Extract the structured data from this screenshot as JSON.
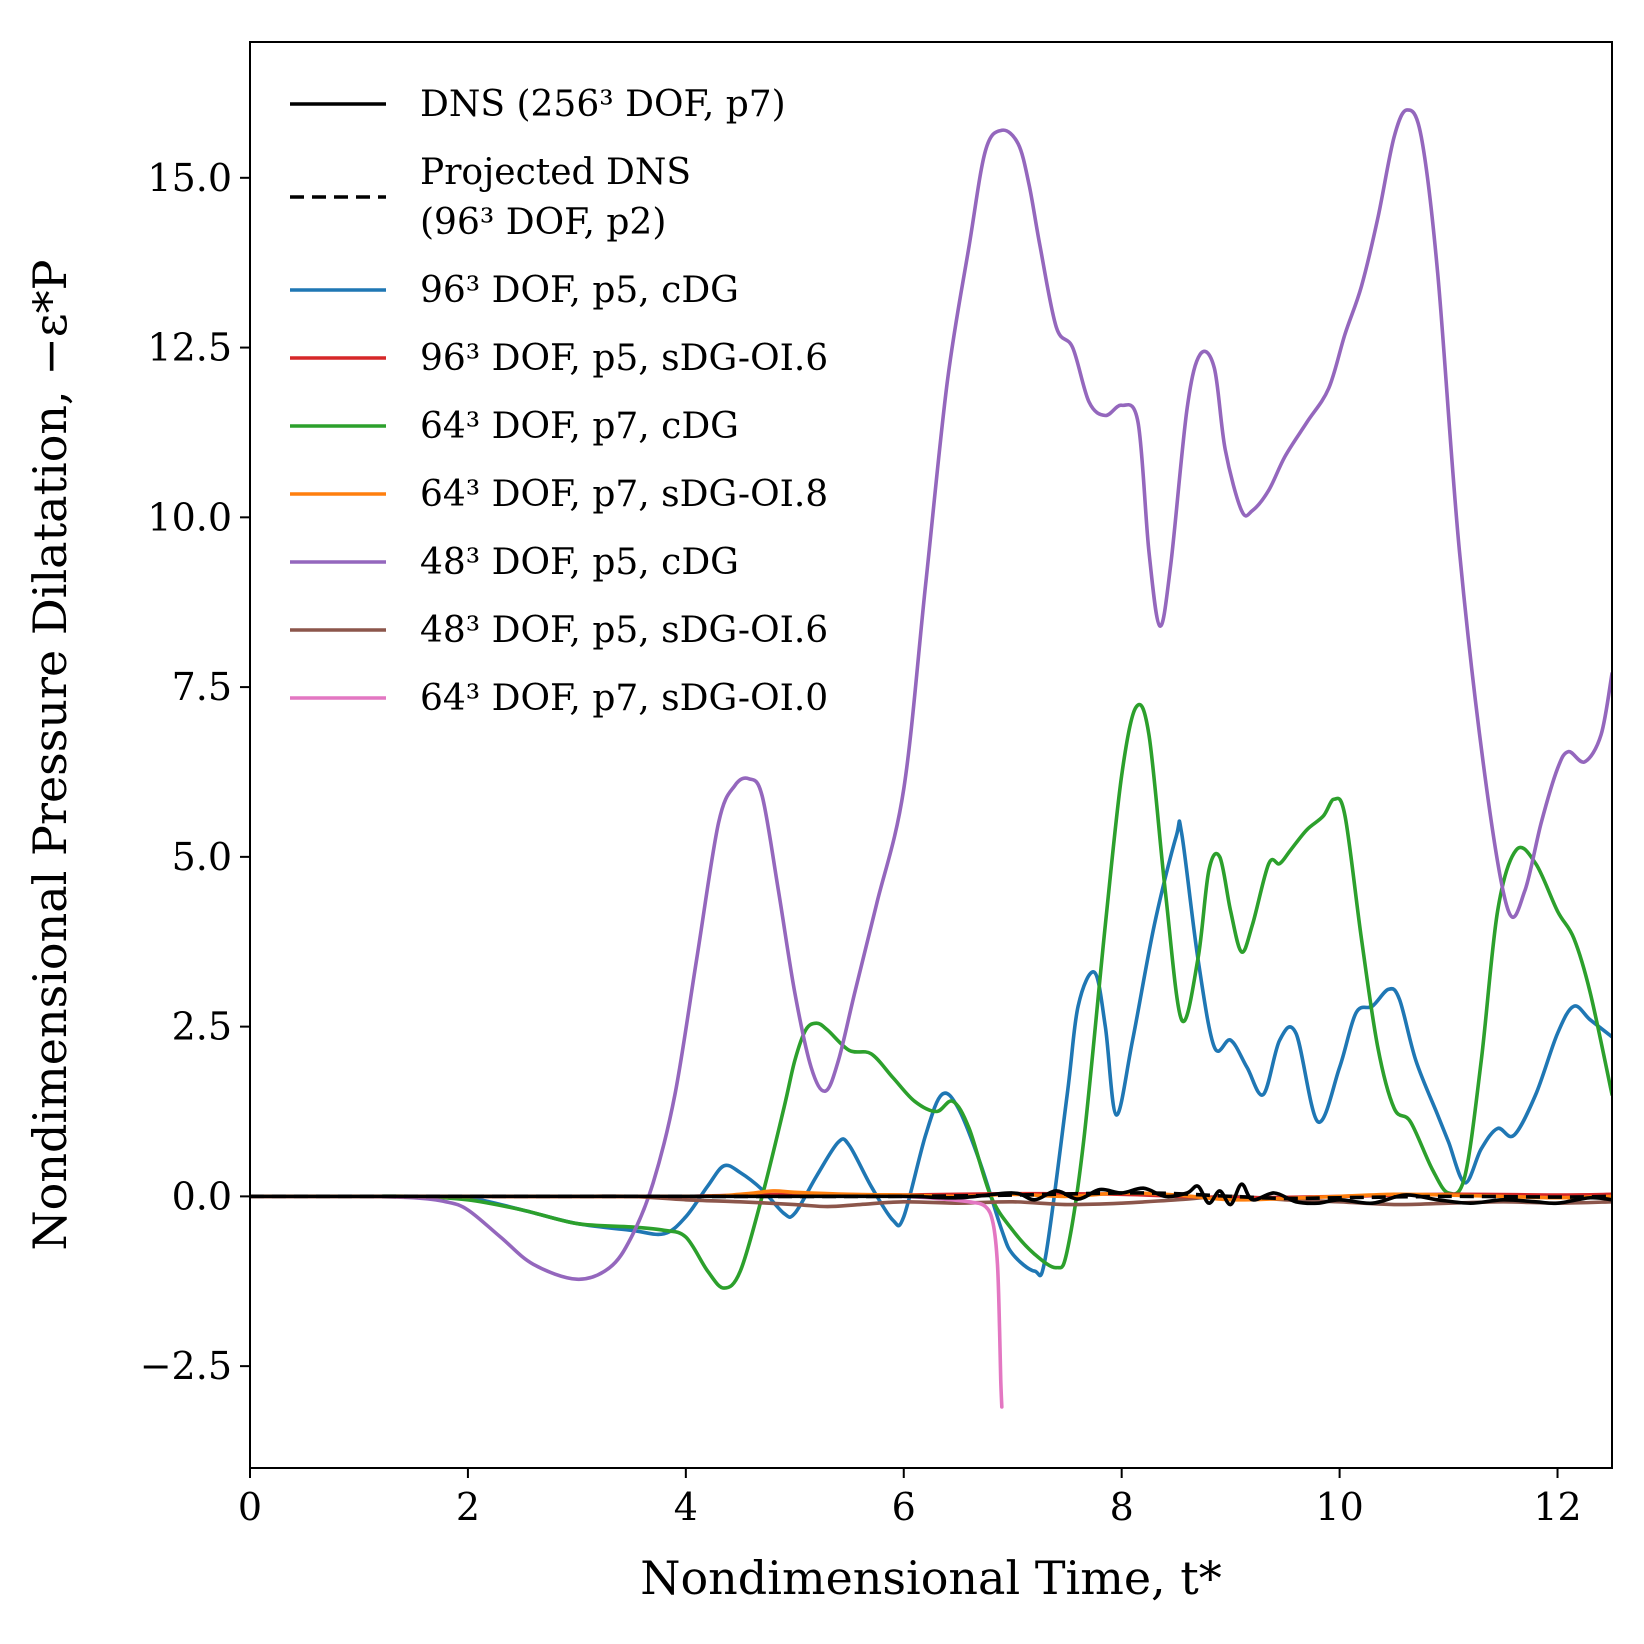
{
  "chart_data": {
    "type": "line",
    "title": "",
    "xlabel": "Nondimensional Time, t*",
    "ylabel": "Nondimensional Pressure Dilatation, −ε*P",
    "xlim": [
      0,
      12.5
    ],
    "ylim": [
      -4.0,
      17.0
    ],
    "xticks": [
      0,
      2,
      4,
      6,
      8,
      10,
      12
    ],
    "xtick_labels": [
      "0",
      "2",
      "4",
      "6",
      "8",
      "10",
      "12"
    ],
    "yticks": [
      -2.5,
      0.0,
      2.5,
      5.0,
      7.5,
      10.0,
      12.5,
      15.0
    ],
    "ytick_labels": [
      "−2.5",
      "0.0",
      "2.5",
      "5.0",
      "7.5",
      "10.0",
      "12.5",
      "15.0"
    ],
    "grid": false,
    "legend_position": "top-left",
    "series": [
      {
        "name": "DNS (256³ DOF, p7)",
        "legend_lines": [
          "DNS (256³ DOF, p7)"
        ],
        "color": "#000000",
        "dash": "solid",
        "x": [
          0,
          1,
          2,
          3,
          4,
          5,
          6,
          6.5,
          7.0,
          7.2,
          7.4,
          7.6,
          7.8,
          8.0,
          8.2,
          8.4,
          8.6,
          8.7,
          8.8,
          8.9,
          9.0,
          9.1,
          9.2,
          9.4,
          9.6,
          9.8,
          10.0,
          10.3,
          10.6,
          10.9,
          11.2,
          11.5,
          11.8,
          12.0,
          12.3,
          12.5
        ],
        "y": [
          0,
          0,
          0,
          0,
          0,
          0,
          0,
          -0.02,
          0.05,
          -0.05,
          0.08,
          -0.04,
          0.1,
          0.05,
          0.12,
          0.0,
          0.05,
          0.15,
          -0.1,
          0.08,
          -0.12,
          0.18,
          -0.05,
          0.05,
          -0.08,
          -0.1,
          -0.05,
          -0.1,
          0.02,
          -0.05,
          -0.1,
          -0.05,
          -0.08,
          -0.1,
          -0.02,
          -0.05
        ]
      },
      {
        "name": "Projected DNS (96³ DOF, p2)",
        "legend_lines": [
          "Projected DNS",
          "(96³ DOF, p2)"
        ],
        "color": "#000000",
        "dash": "dashed",
        "x": [
          0,
          2,
          4,
          6,
          7,
          8,
          8.5,
          9,
          9.5,
          10,
          11,
          12,
          12.5
        ],
        "y": [
          0,
          0,
          0,
          0,
          0.02,
          0.05,
          0.04,
          0.0,
          -0.03,
          -0.02,
          0.0,
          -0.01,
          0.0
        ]
      },
      {
        "name": "96³ DOF, p5, cDG",
        "legend_lines": [
          "96³ DOF, p5, cDG"
        ],
        "color": "#1f77b4",
        "dash": "solid",
        "x": [
          0,
          1,
          1.5,
          2,
          2.5,
          3,
          3.5,
          3.8,
          4.0,
          4.2,
          4.35,
          4.5,
          4.7,
          4.9,
          5.0,
          5.2,
          5.4,
          5.5,
          5.7,
          5.9,
          6.0,
          6.2,
          6.35,
          6.5,
          6.7,
          6.9,
          7.0,
          7.2,
          7.3,
          7.5,
          7.6,
          7.75,
          7.85,
          7.95,
          8.1,
          8.3,
          8.5,
          8.55,
          8.7,
          8.85,
          9.0,
          9.15,
          9.3,
          9.45,
          9.6,
          9.8,
          10.0,
          10.15,
          10.3,
          10.45,
          10.55,
          10.7,
          10.9,
          11.0,
          11.15,
          11.3,
          11.45,
          11.6,
          11.8,
          12.0,
          12.15,
          12.3,
          12.5
        ],
        "y": [
          0,
          0,
          0,
          -0.02,
          -0.2,
          -0.4,
          -0.5,
          -0.55,
          -0.3,
          0.15,
          0.45,
          0.35,
          0.1,
          -0.25,
          -0.25,
          0.3,
          0.8,
          0.75,
          0.15,
          -0.35,
          -0.3,
          0.9,
          1.5,
          1.3,
          0.5,
          -0.5,
          -0.85,
          -1.1,
          -0.9,
          1.5,
          2.8,
          3.3,
          2.5,
          1.2,
          2.3,
          4.0,
          5.3,
          5.35,
          3.5,
          2.2,
          2.3,
          1.9,
          1.5,
          2.3,
          2.4,
          1.1,
          1.9,
          2.7,
          2.8,
          3.05,
          2.9,
          2.0,
          1.2,
          0.8,
          0.2,
          0.7,
          1.0,
          0.9,
          1.5,
          2.4,
          2.8,
          2.6,
          2.35
        ]
      },
      {
        "name": "96³ DOF, p5, sDG-OI.6",
        "legend_lines": [
          "96³ DOF, p5, sDG-OI.6"
        ],
        "color": "#d62728",
        "dash": "solid",
        "x": [
          0,
          2,
          4,
          5,
          6,
          7,
          8,
          9,
          10,
          11,
          12,
          12.5
        ],
        "y": [
          0,
          0,
          0,
          0.03,
          0.02,
          0.04,
          0.03,
          -0.02,
          0.0,
          0.03,
          0.02,
          0.03
        ]
      },
      {
        "name": "64³ DOF, p7, cDG",
        "legend_lines": [
          "64³ DOF, p7, cDG"
        ],
        "color": "#2ca02c",
        "dash": "solid",
        "x": [
          0,
          1,
          1.5,
          2,
          2.5,
          3,
          3.5,
          3.8,
          4.0,
          4.2,
          4.35,
          4.5,
          4.7,
          4.9,
          5.0,
          5.1,
          5.2,
          5.3,
          5.5,
          5.7,
          5.9,
          6.1,
          6.3,
          6.45,
          6.6,
          6.8,
          7.0,
          7.2,
          7.4,
          7.5,
          7.65,
          7.85,
          8.0,
          8.13,
          8.25,
          8.4,
          8.55,
          8.7,
          8.8,
          8.9,
          9.0,
          9.1,
          9.2,
          9.35,
          9.45,
          9.55,
          9.7,
          9.85,
          9.95,
          10.05,
          10.2,
          10.35,
          10.5,
          10.65,
          10.85,
          11.0,
          11.15,
          11.3,
          11.45,
          11.62,
          11.8,
          12.0,
          12.15,
          12.3,
          12.5
        ],
        "y": [
          0,
          0,
          0,
          -0.05,
          -0.2,
          -0.4,
          -0.45,
          -0.5,
          -0.6,
          -1.1,
          -1.35,
          -1.1,
          0.0,
          1.3,
          2.0,
          2.45,
          2.55,
          2.45,
          2.15,
          2.1,
          1.75,
          1.4,
          1.25,
          1.4,
          1.0,
          0.0,
          -0.5,
          -0.85,
          -1.05,
          -0.8,
          0.8,
          4.0,
          6.2,
          7.2,
          6.8,
          4.5,
          2.6,
          3.5,
          4.8,
          5.0,
          4.2,
          3.6,
          4.0,
          4.9,
          4.9,
          5.1,
          5.4,
          5.6,
          5.85,
          5.6,
          3.8,
          2.2,
          1.3,
          1.1,
          0.4,
          0.05,
          0.3,
          2.0,
          4.2,
          5.1,
          4.9,
          4.2,
          3.8,
          3.0,
          1.5
        ]
      },
      {
        "name": "64³ DOF, p7, sDG-OI.8",
        "legend_lines": [
          "64³ DOF, p7, sDG-OI.8"
        ],
        "color": "#ff7f0e",
        "dash": "solid",
        "x": [
          0,
          2,
          4,
          4.5,
          4.8,
          5.0,
          5.5,
          6.0,
          6.5,
          7.0,
          7.5,
          8.0,
          8.5,
          9.0,
          9.5,
          10.0,
          10.5,
          11.0,
          11.5,
          12.0,
          12.5
        ],
        "y": [
          0,
          0,
          0,
          0.03,
          0.08,
          0.06,
          0.03,
          0.02,
          0.0,
          0.03,
          0.0,
          0.05,
          0.02,
          -0.05,
          -0.03,
          0.0,
          0.03,
          0.02,
          0.0,
          -0.02,
          0.0
        ]
      },
      {
        "name": "48³ DOF, p5, cDG",
        "legend_lines": [
          "48³ DOF, p5, cDG"
        ],
        "color": "#9467bd",
        "dash": "solid",
        "x": [
          0,
          0.5,
          1.0,
          1.5,
          1.8,
          2.0,
          2.3,
          2.6,
          3.0,
          3.3,
          3.5,
          3.7,
          3.9,
          4.1,
          4.3,
          4.45,
          4.58,
          4.7,
          4.85,
          5.0,
          5.15,
          5.28,
          5.4,
          5.55,
          5.75,
          6.0,
          6.2,
          6.4,
          6.6,
          6.75,
          6.9,
          7.05,
          7.15,
          7.25,
          7.4,
          7.55,
          7.7,
          7.85,
          8.0,
          8.15,
          8.25,
          8.35,
          8.45,
          8.6,
          8.72,
          8.85,
          8.95,
          9.1,
          9.2,
          9.35,
          9.5,
          9.7,
          9.9,
          10.05,
          10.2,
          10.35,
          10.5,
          10.62,
          10.75,
          10.9,
          11.1,
          11.35,
          11.55,
          11.7,
          11.85,
          12.0,
          12.1,
          12.25,
          12.4,
          12.5
        ],
        "y": [
          0,
          0,
          0,
          -0.02,
          -0.08,
          -0.2,
          -0.6,
          -1.0,
          -1.22,
          -1.05,
          -0.6,
          0.2,
          1.5,
          3.5,
          5.5,
          6.05,
          6.15,
          5.9,
          4.5,
          3.0,
          1.9,
          1.55,
          2.0,
          3.0,
          4.3,
          6.0,
          9.0,
          12.0,
          14.0,
          15.4,
          15.7,
          15.5,
          14.9,
          14.0,
          12.8,
          12.5,
          11.7,
          11.5,
          11.65,
          11.4,
          9.5,
          8.4,
          9.3,
          11.6,
          12.4,
          12.2,
          11.0,
          10.1,
          10.1,
          10.4,
          10.9,
          11.4,
          11.9,
          12.7,
          13.4,
          14.4,
          15.6,
          16.0,
          15.6,
          13.6,
          9.5,
          6.0,
          4.2,
          4.5,
          5.5,
          6.3,
          6.55,
          6.4,
          6.8,
          7.7
        ]
      },
      {
        "name": "48³ DOF, p5, sDG-OI.6",
        "legend_lines": [
          "48³ DOF, p5, sDG-OI.6"
        ],
        "color": "#8c564b",
        "dash": "solid",
        "x": [
          0,
          2,
          3,
          3.5,
          4.0,
          4.5,
          5.0,
          5.3,
          5.6,
          6.0,
          6.5,
          7.0,
          7.5,
          8.0,
          8.5,
          9.0,
          9.5,
          10.0,
          10.5,
          11.0,
          11.5,
          12.0,
          12.5
        ],
        "y": [
          0,
          0,
          0,
          0.0,
          -0.05,
          -0.08,
          -0.12,
          -0.15,
          -0.12,
          -0.08,
          -0.1,
          -0.08,
          -0.12,
          -0.1,
          -0.05,
          0.0,
          -0.05,
          -0.08,
          -0.12,
          -0.1,
          -0.08,
          -0.1,
          -0.08
        ]
      },
      {
        "name": "64³ DOF, p7, sDG-OI.0",
        "legend_lines": [
          "64³ DOF, p7, sDG-OI.0"
        ],
        "color": "#e377c2",
        "dash": "solid",
        "x": [
          0,
          1,
          2,
          3,
          4,
          4.5,
          5.0,
          5.5,
          6.0,
          6.3,
          6.6,
          6.75,
          6.82,
          6.86,
          6.88,
          6.89,
          6.9
        ],
        "y": [
          0,
          0,
          0,
          0,
          0.0,
          0.02,
          0.03,
          0.02,
          0.0,
          -0.03,
          -0.08,
          -0.15,
          -0.4,
          -1.0,
          -2.0,
          -2.7,
          -3.1
        ]
      }
    ]
  }
}
